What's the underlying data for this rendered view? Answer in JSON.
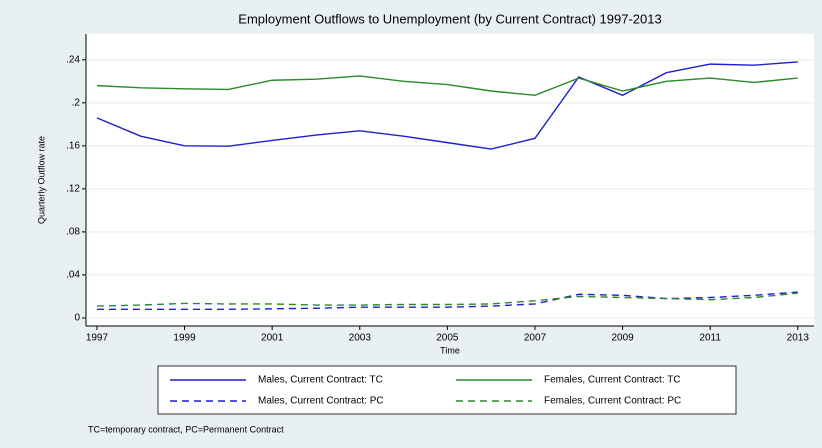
{
  "chart_data": {
    "type": "line",
    "title": "Employment Outflows to Unemployment (by Current Contract) 1997-2013",
    "y_label": "Quarterly Outflow rate",
    "x_label": "Time",
    "note": "TC=temporary contract, PC=Permanent Contract",
    "x": [
      1997,
      1998,
      1999,
      2000,
      2001,
      2002,
      2003,
      2004,
      2005,
      2006,
      2007,
      2008,
      2009,
      2010,
      2011,
      2012,
      2013
    ],
    "series": [
      {
        "name": "Males, Current Contract: TC",
        "color": "#1f1fd0",
        "style": "solid",
        "values": [
          0.186,
          0.169,
          0.16,
          0.1597,
          0.165,
          0.17,
          0.174,
          0.169,
          0.163,
          0.157,
          0.167,
          0.224,
          0.207,
          0.228,
          0.236,
          0.235,
          0.238
        ]
      },
      {
        "name": "Females, Current Contract: TC",
        "color": "#2a8a2a",
        "style": "solid",
        "values": [
          0.216,
          0.214,
          0.213,
          0.2125,
          0.221,
          0.222,
          0.225,
          0.22,
          0.217,
          0.211,
          0.207,
          0.223,
          0.211,
          0.22,
          0.223,
          0.219,
          0.223
        ]
      },
      {
        "name": "Males, Current Contract: PC",
        "color": "#1f1fd0",
        "style": "dashed",
        "values": [
          0.008,
          0.008,
          0.008,
          0.008,
          0.0085,
          0.009,
          0.01,
          0.01,
          0.01,
          0.011,
          0.013,
          0.022,
          0.021,
          0.018,
          0.019,
          0.021,
          0.024
        ]
      },
      {
        "name": "Females, Current Contract: PC",
        "color": "#2a8a2a",
        "style": "dashed",
        "values": [
          0.011,
          0.012,
          0.0135,
          0.013,
          0.013,
          0.012,
          0.012,
          0.0125,
          0.0125,
          0.013,
          0.016,
          0.02,
          0.019,
          0.018,
          0.017,
          0.019,
          0.023
        ]
      }
    ],
    "xlim": [
      1996.75,
      2013.37
    ],
    "xticks": [
      1997,
      1999,
      2001,
      2003,
      2005,
      2007,
      2009,
      2011,
      2013
    ],
    "ylim": [
      -0.0075,
      0.264
    ],
    "yticks": [
      0,
      {
        "value": 0.04,
        "label": ".04"
      },
      {
        "value": 0.08,
        "label": ".08"
      },
      {
        "value": 0.12,
        "label": ".12"
      },
      {
        "value": 0.16,
        "label": ".16"
      },
      {
        "value": 0.2,
        "label": ".2"
      },
      {
        "value": 0.24,
        "label": ".24"
      }
    ],
    "grid": true
  }
}
